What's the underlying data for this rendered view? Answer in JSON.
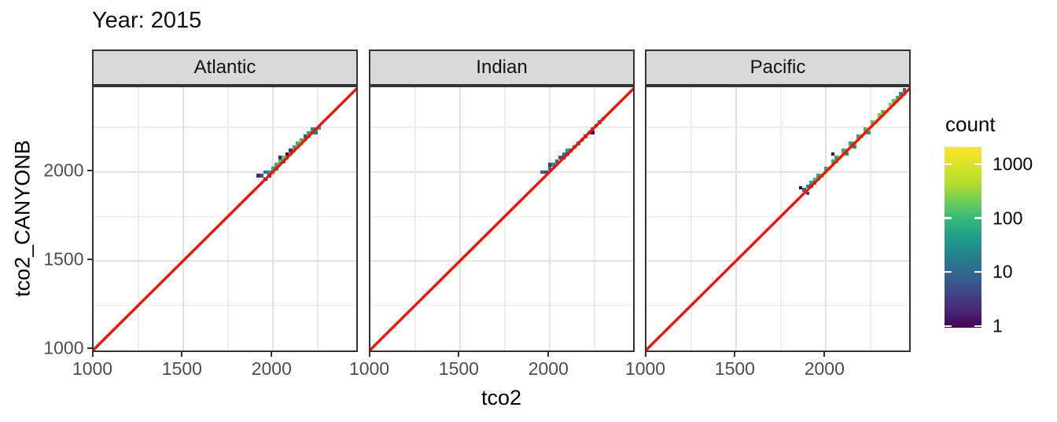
{
  "title": "Year: 2015",
  "axes": {
    "x_title": "tco2",
    "y_title": "tco2_CANYONB",
    "x_tick_labels": [
      "1000",
      "1500",
      "2000"
    ],
    "y_tick_labels": [
      "1000",
      "1500",
      "2000"
    ]
  },
  "facets": [
    "Atlantic",
    "Indian",
    "Pacific"
  ],
  "legend": {
    "title": "count",
    "tick_labels": [
      "1000",
      "100",
      "10",
      "1"
    ]
  },
  "colors": {
    "reference_line": "#f51106",
    "strip_background": "#d9d9d9",
    "panel_border": "#333333",
    "tick_label": "#4d4d4d",
    "viridis_low": "#440154",
    "viridis_high": "#fde725"
  },
  "chart_data": {
    "type": "heatmap",
    "subtype": "2d-binned scatter (geom_bin2d), faceted by ocean basin",
    "title": "Year: 2015",
    "xlabel": "tco2",
    "ylabel": "tco2_CANYONB",
    "x_range": [
      1000,
      2480
    ],
    "y_range": [
      978,
      2478
    ],
    "x_ticks": [
      1000,
      1500,
      2000
    ],
    "y_ticks": [
      1000,
      1500,
      2000
    ],
    "grid_minor": [
      1250,
      1750,
      2250
    ],
    "grid_major": [
      1500,
      2000
    ],
    "bin_width": 20,
    "color_scale": {
      "name": "viridis",
      "transform": "log10",
      "domain": [
        1,
        2000
      ],
      "legend_title": "count",
      "legend_ticks": [
        1000,
        100,
        10,
        1
      ]
    },
    "reference_line": {
      "type": "identity y = x",
      "color": "red"
    },
    "panels": [
      {
        "facet": "Atlantic",
        "tiles": [
          [
            1920,
            1980,
            2
          ],
          [
            1940,
            1980,
            6
          ],
          [
            1960,
            1960,
            1
          ],
          [
            1960,
            2000,
            15
          ],
          [
            1980,
            2000,
            40
          ],
          [
            1980,
            1980,
            4
          ],
          [
            2000,
            2020,
            70
          ],
          [
            2000,
            2000,
            12
          ],
          [
            2020,
            2040,
            90
          ],
          [
            2020,
            2020,
            20
          ],
          [
            2040,
            2060,
            120
          ],
          [
            2040,
            2080,
            2
          ],
          [
            2060,
            2060,
            25
          ],
          [
            2060,
            2080,
            160
          ],
          [
            2080,
            2100,
            1
          ],
          [
            2080,
            2080,
            60
          ],
          [
            2100,
            2100,
            250
          ],
          [
            2100,
            2120,
            3
          ],
          [
            2120,
            2120,
            320
          ],
          [
            2120,
            2140,
            60
          ],
          [
            2140,
            2140,
            450
          ],
          [
            2140,
            2160,
            90
          ],
          [
            2160,
            2160,
            700
          ],
          [
            2160,
            2180,
            120
          ],
          [
            2180,
            2180,
            250
          ],
          [
            2180,
            2200,
            8
          ],
          [
            2200,
            2200,
            140
          ],
          [
            2200,
            2220,
            60
          ],
          [
            2220,
            2220,
            90
          ],
          [
            2220,
            2240,
            30
          ],
          [
            2240,
            2240,
            70
          ],
          [
            2240,
            2220,
            15
          ],
          [
            2260,
            2250,
            40
          ]
        ]
      },
      {
        "facet": "Indian",
        "tiles": [
          [
            1960,
            2000,
            8
          ],
          [
            1980,
            2000,
            5
          ],
          [
            2000,
            2020,
            12
          ],
          [
            2000,
            2040,
            3
          ],
          [
            2020,
            2040,
            30
          ],
          [
            2040,
            2060,
            10
          ],
          [
            2060,
            2080,
            8
          ],
          [
            2080,
            2080,
            4
          ],
          [
            2080,
            2100,
            15
          ],
          [
            2100,
            2120,
            50
          ],
          [
            2100,
            2100,
            9
          ],
          [
            2120,
            2120,
            12
          ],
          [
            2140,
            2140,
            10
          ],
          [
            2160,
            2160,
            25
          ],
          [
            2180,
            2180,
            15
          ],
          [
            2200,
            2200,
            12
          ],
          [
            2220,
            2220,
            8
          ],
          [
            2240,
            2220,
            1
          ],
          [
            2240,
            2240,
            20
          ],
          [
            2260,
            2260,
            10
          ],
          [
            2280,
            2280,
            40
          ],
          [
            2300,
            2300,
            60
          ]
        ]
      },
      {
        "facet": "Pacific",
        "tiles": [
          [
            1860,
            1910,
            1
          ],
          [
            1880,
            1900,
            10
          ],
          [
            1900,
            1880,
            4
          ],
          [
            1900,
            1920,
            25
          ],
          [
            1920,
            1940,
            60
          ],
          [
            1920,
            1920,
            12
          ],
          [
            1940,
            1960,
            120
          ],
          [
            1940,
            1940,
            30
          ],
          [
            1960,
            1960,
            200
          ],
          [
            1960,
            1980,
            60
          ],
          [
            1980,
            1980,
            300
          ],
          [
            2000,
            2000,
            250
          ],
          [
            2000,
            2020,
            70
          ],
          [
            2020,
            2020,
            350
          ],
          [
            2040,
            2040,
            400
          ],
          [
            2040,
            2060,
            80
          ],
          [
            2040,
            2100,
            1
          ],
          [
            2060,
            2060,
            250
          ],
          [
            2060,
            2080,
            60
          ],
          [
            2080,
            2080,
            500
          ],
          [
            2100,
            2100,
            300
          ],
          [
            2100,
            2120,
            80
          ],
          [
            2120,
            2120,
            250
          ],
          [
            2120,
            2100,
            30
          ],
          [
            2140,
            2140,
            350
          ],
          [
            2140,
            2160,
            60
          ],
          [
            2160,
            2160,
            200
          ],
          [
            2160,
            2140,
            25
          ],
          [
            2180,
            2180,
            450
          ],
          [
            2180,
            2200,
            70
          ],
          [
            2200,
            2200,
            300
          ],
          [
            2220,
            2220,
            600
          ],
          [
            2220,
            2240,
            100
          ],
          [
            2240,
            2240,
            900
          ],
          [
            2240,
            2220,
            40
          ],
          [
            2260,
            2260,
            1300
          ],
          [
            2260,
            2280,
            150
          ],
          [
            2280,
            2280,
            800
          ],
          [
            2300,
            2300,
            1600
          ],
          [
            2300,
            2320,
            200
          ],
          [
            2320,
            2320,
            1000
          ],
          [
            2320,
            2340,
            120
          ],
          [
            2340,
            2340,
            1900
          ],
          [
            2360,
            2360,
            1400
          ],
          [
            2360,
            2380,
            250
          ],
          [
            2380,
            2380,
            2000
          ],
          [
            2380,
            2400,
            150
          ],
          [
            2400,
            2400,
            1100
          ],
          [
            2400,
            2420,
            80
          ],
          [
            2420,
            2420,
            500
          ],
          [
            2420,
            2440,
            30
          ],
          [
            2440,
            2440,
            200
          ],
          [
            2440,
            2460,
            10
          ]
        ]
      }
    ]
  }
}
